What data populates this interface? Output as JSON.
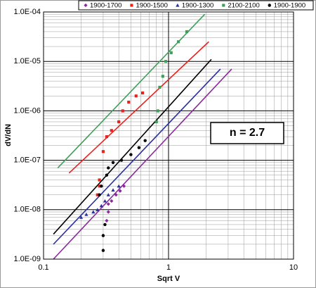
{
  "chart_data": {
    "type": "scatter",
    "x_label": "Sqrt V",
    "y_label": "dV/dN",
    "annotation": "n = 2.7",
    "log_x": true,
    "log_y": true,
    "grid": true,
    "legend": "top",
    "xlim": [
      0.1,
      10
    ],
    "xticks": [
      0.1,
      1,
      10
    ],
    "ylim": [
      1e-09,
      0.0001
    ],
    "yticks": [
      {
        "value": 1e-09,
        "label": "1.0E-09"
      },
      {
        "value": 1e-08,
        "label": "1.0E-08"
      },
      {
        "value": 1e-07,
        "label": "1.0E-07"
      },
      {
        "value": 1e-06,
        "label": "1.0E-06"
      },
      {
        "value": 1e-05,
        "label": "1.0E-05"
      },
      {
        "value": 0.0001,
        "label": "1.0E-04"
      }
    ],
    "series": [
      {
        "name": "1900-1700",
        "color": "#8b2a9b",
        "marker": "diamond",
        "x": [
          0.32,
          0.33,
          0.33,
          0.35,
          0.38,
          0.41,
          0.44
        ],
        "values": [
          6e-09,
          9e-09,
          1.3e-08,
          1.5e-08,
          2e-08,
          2.4e-08,
          3e-08
        ],
        "fit": {
          "x": [
            0.12,
            3.2
          ],
          "values": [
            1e-09,
            7e-06
          ]
        }
      },
      {
        "name": "1900-1500",
        "color": "#e8231f",
        "marker": "square",
        "x": [
          0.27,
          0.28,
          0.28,
          0.3,
          0.32,
          0.35,
          0.4,
          0.43,
          0.48,
          0.55,
          0.62
        ],
        "values": [
          2e-08,
          3e-08,
          4e-08,
          1.5e-07,
          3e-07,
          4e-07,
          6e-07,
          1e-06,
          1.5e-06,
          2e-06,
          2.3e-06
        ],
        "fit": {
          "x": [
            0.16,
            2.1
          ],
          "values": [
            5.5e-08,
            2.5e-05
          ]
        }
      },
      {
        "name": "1900-1300",
        "color": "#2a2fa0",
        "marker": "triangle",
        "x": [
          0.2,
          0.22,
          0.25,
          0.27,
          0.29,
          0.31,
          0.33,
          0.36,
          0.4
        ],
        "values": [
          7e-09,
          8e-09,
          9e-09,
          1e-08,
          1.2e-08,
          1.5e-08,
          2e-08,
          2.5e-08,
          3e-08
        ],
        "fit": {
          "x": [
            0.12,
            2.6
          ],
          "values": [
            2e-09,
            7e-06
          ]
        }
      },
      {
        "name": "2100-2100",
        "color": "#3f9e5a",
        "marker": "square",
        "x": [
          0.8,
          0.82,
          0.85,
          0.9,
          0.95,
          1.05,
          1.2,
          1.4
        ],
        "values": [
          6e-07,
          1e-06,
          3e-06,
          5e-06,
          1e-05,
          1.5e-05,
          2.5e-05,
          4e-05
        ],
        "fit": {
          "x": [
            0.13,
            1.95
          ],
          "values": [
            7e-08,
            9e-05
          ]
        }
      },
      {
        "name": "1900-1900",
        "color": "#000000",
        "marker": "circle",
        "x": [
          0.28,
          0.29,
          0.3,
          0.3,
          0.31,
          0.32,
          0.33,
          0.36,
          0.42,
          0.5,
          0.58,
          0.65
        ],
        "values": [
          2e-08,
          3e-08,
          1.5e-09,
          3e-09,
          5e-09,
          5e-08,
          7e-08,
          9e-08,
          1e-07,
          1.3e-07,
          1.8e-07,
          2.5e-07
        ],
        "fit": {
          "x": [
            0.12,
            2.2
          ],
          "values": [
            3.2e-09,
            1.1e-05
          ]
        }
      }
    ]
  }
}
